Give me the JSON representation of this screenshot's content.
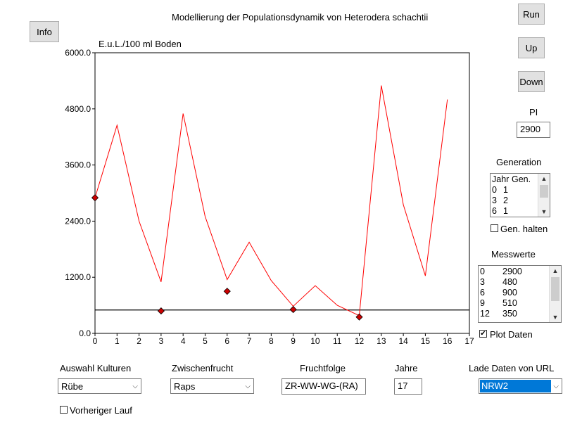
{
  "title": "Modellierung der Populationsdynamik von Heterodera schachtii",
  "buttons": {
    "info": "Info",
    "run": "Run",
    "up": "Up",
    "down": "Down"
  },
  "pi": {
    "label": "PI",
    "value": "2900"
  },
  "generation": {
    "label": "Generation",
    "header": [
      "Jahr",
      "Gen."
    ],
    "rows": [
      [
        "0",
        "1"
      ],
      [
        "3",
        "2"
      ],
      [
        "6",
        "1"
      ]
    ],
    "hold_label": "Gen. halten",
    "hold_checked": false
  },
  "messwerte": {
    "label": "Messwerte",
    "rows": [
      [
        "0",
        "2900"
      ],
      [
        "3",
        "480"
      ],
      [
        "6",
        "900"
      ],
      [
        "9",
        "510"
      ],
      [
        "12",
        "350"
      ]
    ],
    "plot_label": "Plot Daten",
    "plot_checked": true
  },
  "bottom": {
    "kulturen": {
      "label": "Auswahl Kulturen",
      "value": "Rübe"
    },
    "zwischenfrucht": {
      "label": "Zwischenfrucht",
      "value": "Raps"
    },
    "fruchtfolge": {
      "label": "Fruchtfolge",
      "value": "ZR-WW-WG-(RA)"
    },
    "jahre": {
      "label": "Jahre",
      "value": "17"
    },
    "url": {
      "label": "Lade Daten von URL",
      "value": "NRW2"
    },
    "vorheriger": {
      "label": "Vorheriger Lauf",
      "checked": false
    }
  },
  "chart_data": {
    "type": "line",
    "ylabel": "E.u.L./100 ml Boden",
    "xlim": [
      0,
      17
    ],
    "ylim": [
      0,
      6000
    ],
    "yticks": [
      "0.0",
      "1200.0",
      "2400.0",
      "3600.0",
      "4800.0",
      "6000.0"
    ],
    "xticks": [
      "0",
      "1",
      "2",
      "3",
      "4",
      "5",
      "6",
      "7",
      "8",
      "9",
      "10",
      "11",
      "12",
      "13",
      "14",
      "15",
      "16",
      "17"
    ],
    "series": [
      {
        "color": "#ff0000",
        "x": [
          0,
          1,
          2,
          3,
          4,
          5,
          6,
          7,
          8,
          9,
          10,
          11,
          12,
          13,
          14,
          15,
          16
        ],
        "y": [
          2900,
          4450,
          2400,
          1100,
          4700,
          2500,
          1150,
          1950,
          1130,
          580,
          1020,
          600,
          380,
          5300,
          2750,
          1230,
          5000
        ]
      }
    ],
    "threshold": 500,
    "measured": {
      "x": [
        0,
        3,
        6,
        9,
        12
      ],
      "y": [
        2900,
        480,
        900,
        510,
        350
      ],
      "color": "#cc0000"
    }
  }
}
